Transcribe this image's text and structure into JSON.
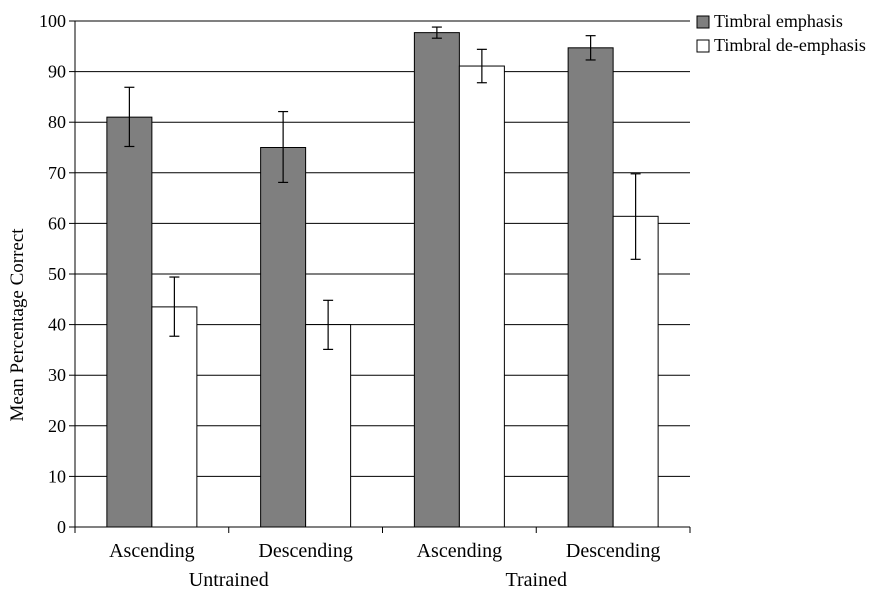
{
  "chart_data": {
    "type": "bar",
    "title": "",
    "xlabel": "",
    "ylabel": "Mean Percentage Correct",
    "ylim": [
      0,
      100
    ],
    "yticks": [
      0,
      10,
      20,
      30,
      40,
      50,
      60,
      70,
      80,
      90,
      100
    ],
    "grid": true,
    "legend_position": "top-right",
    "categories": [
      "Ascending",
      "Descending",
      "Ascending",
      "Descending"
    ],
    "groups": [
      {
        "label": "Untrained",
        "categories": [
          0,
          1
        ]
      },
      {
        "label": "Trained",
        "categories": [
          2,
          3
        ]
      }
    ],
    "series": [
      {
        "name": "Timbral emphasis",
        "color": "#7f7f7f",
        "values": [
          81,
          75,
          97.7,
          94.7
        ],
        "error_low": [
          75.2,
          68.1,
          96.6,
          92.3
        ],
        "error_high": [
          86.9,
          82.1,
          98.8,
          97.1
        ]
      },
      {
        "name": "Timbral de-emphasis",
        "color": "#ffffff",
        "values": [
          43.5,
          40,
          91.1,
          61.4
        ],
        "error_low": [
          37.7,
          35.1,
          87.8,
          52.9
        ],
        "error_high": [
          49.4,
          44.8,
          94.4,
          69.8
        ]
      }
    ]
  }
}
